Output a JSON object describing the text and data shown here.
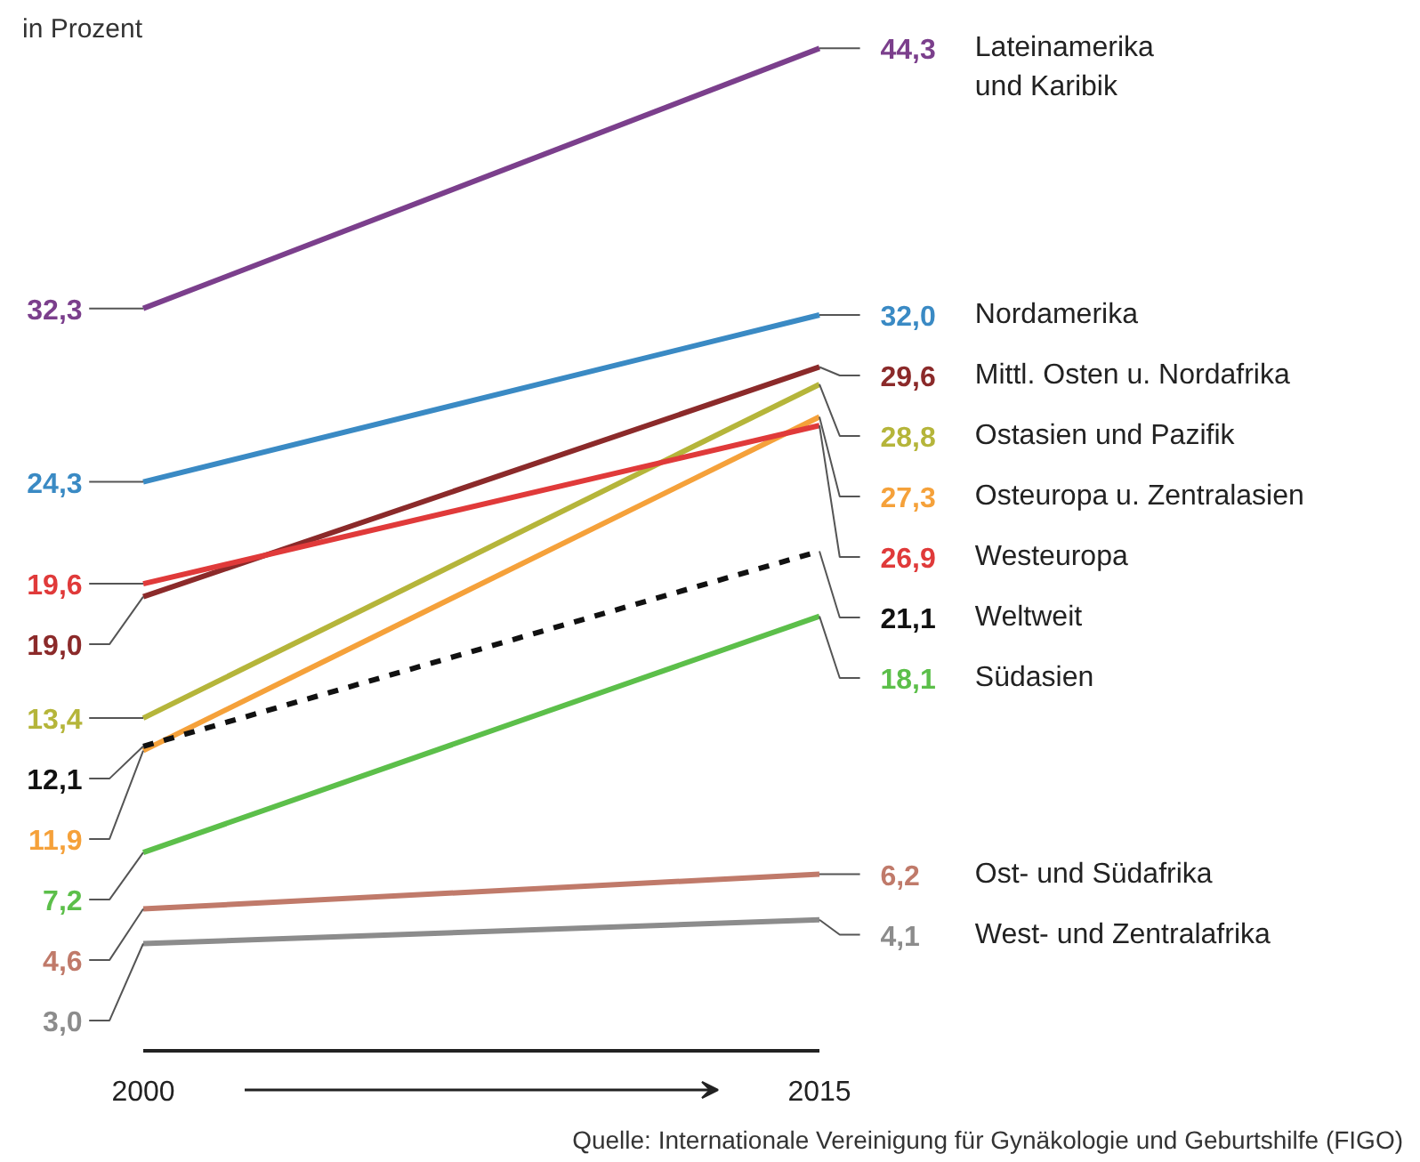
{
  "chart_data": {
    "type": "line",
    "ylabel": "in Prozent",
    "categories": [
      "2000",
      "2015"
    ],
    "series": [
      {
        "name": "Lateinamerika\nund Karibik",
        "color": "#7b3f8c",
        "values": [
          32.3,
          44.3
        ],
        "value_labels": [
          "32,3",
          "44,3"
        ]
      },
      {
        "name": "Nordamerika",
        "color": "#3a8ac4",
        "values": [
          24.3,
          32.0
        ],
        "value_labels": [
          "24,3",
          "32,0"
        ]
      },
      {
        "name": "Mittl. Osten u. Nordafrika",
        "color": "#8b2a2a",
        "values": [
          19.0,
          29.6
        ],
        "value_labels": [
          "19,0",
          "29,6"
        ]
      },
      {
        "name": "Ostasien und Pazifik",
        "color": "#b5b53a",
        "values": [
          13.4,
          28.8
        ],
        "value_labels": [
          "13,4",
          "28,8"
        ]
      },
      {
        "name": "Osteuropa u. Zentralasien",
        "color": "#f5a13a",
        "values": [
          11.9,
          27.3
        ],
        "value_labels": [
          "11,9",
          "27,3"
        ]
      },
      {
        "name": "Westeuropa",
        "color": "#e03a3a",
        "values": [
          19.6,
          26.9
        ],
        "value_labels": [
          "19,6",
          "26,9"
        ]
      },
      {
        "name": "Weltweit",
        "color": "#111111",
        "values": [
          12.1,
          21.1
        ],
        "value_labels": [
          "12,1",
          "21,1"
        ],
        "line_style": "dashed"
      },
      {
        "name": "Südasien",
        "color": "#5cbf4a",
        "values": [
          7.2,
          18.1
        ],
        "value_labels": [
          "7,2",
          "18,1"
        ]
      },
      {
        "name": "Ost- und Südafrika",
        "color": "#c07a6a",
        "values": [
          4.6,
          6.2
        ],
        "value_labels": [
          "4,6",
          "6,2"
        ]
      },
      {
        "name": "West- und Zentralafrika",
        "color": "#8c8c8c",
        "values": [
          3.0,
          4.1
        ],
        "value_labels": [
          "3,0",
          "4,1"
        ]
      }
    ],
    "annotations": [
      "Quelle: Internationale Vereinigung für Gynäkologie und Geburtshilfe (FIGO)"
    ]
  }
}
